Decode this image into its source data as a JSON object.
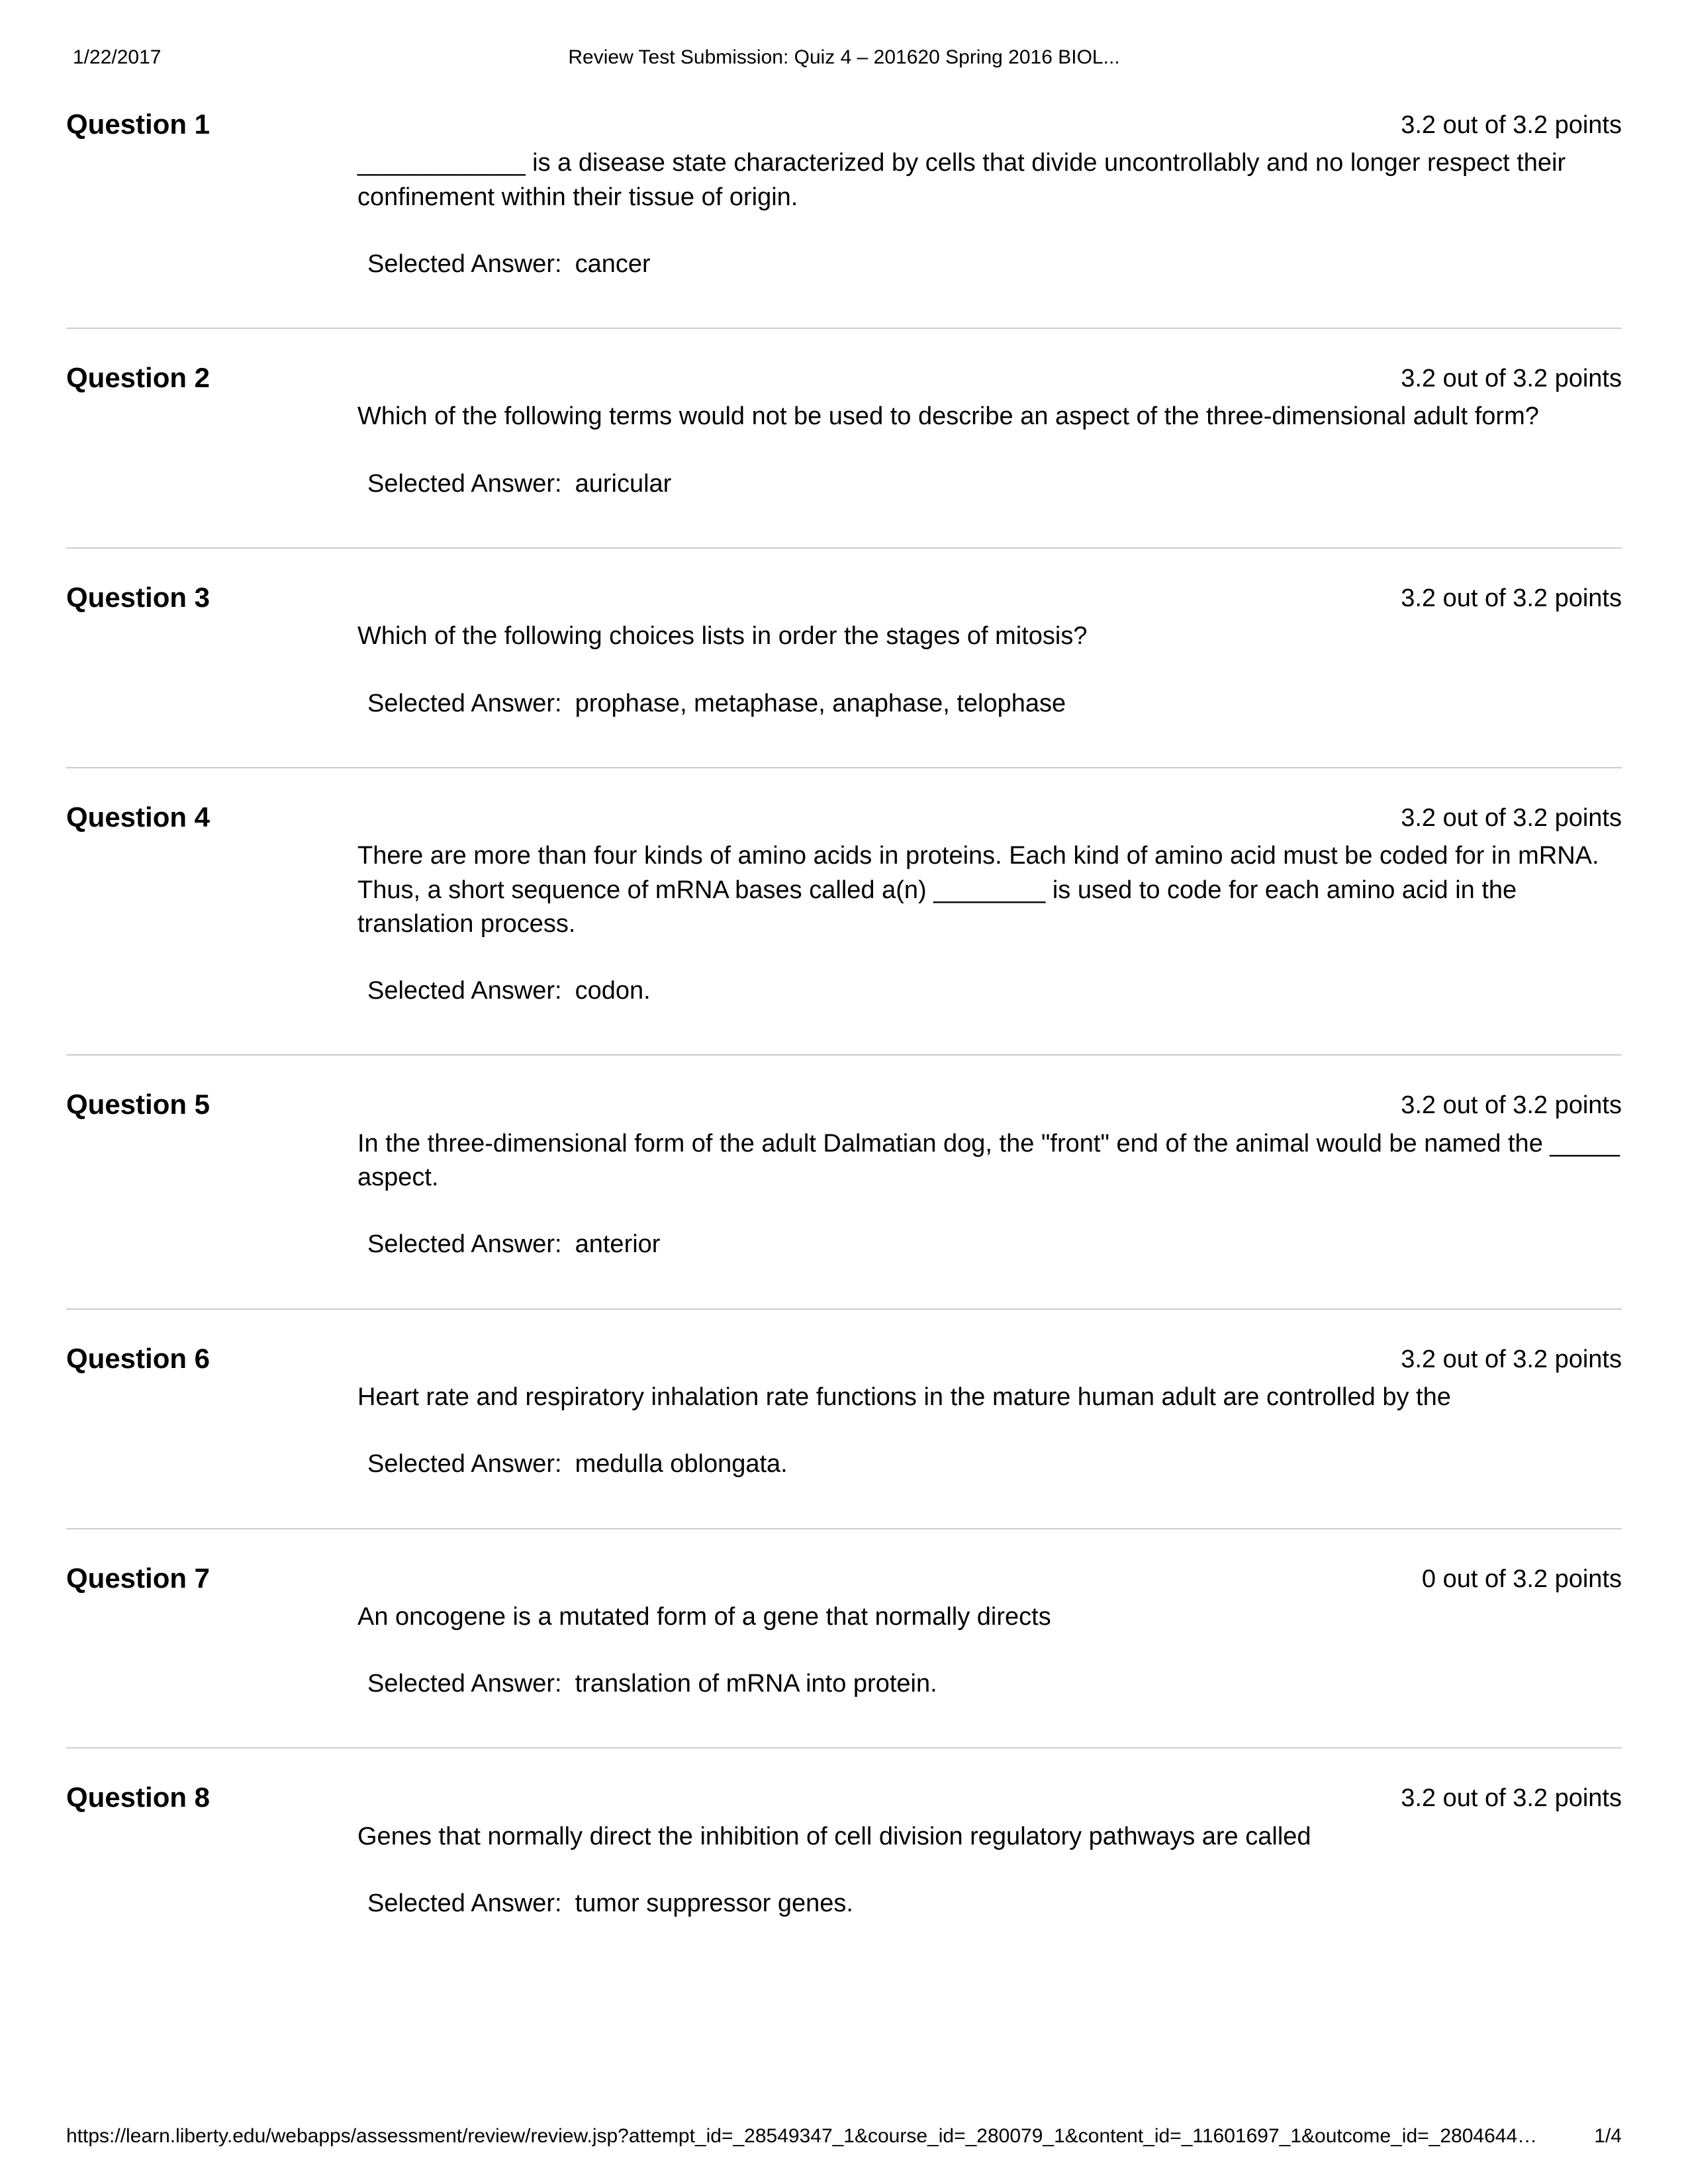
{
  "header": {
    "date": "1/22/2017",
    "title": "Review Test Submission: Quiz 4 – 201620 Spring 2016 BIOL..."
  },
  "questions": [
    {
      "label": "Question 1",
      "points": "3.2 out of 3.2 points",
      "text": "____________ is a disease state characterized by cells that divide uncontrollably and no longer respect their confinement within their tissue of origin.",
      "answer_label": "Selected Answer:",
      "answer_value": "cancer"
    },
    {
      "label": "Question 2",
      "points": "3.2 out of 3.2 points",
      "text": "Which of the following terms would not be used to describe an aspect of the three-dimensional adult form?",
      "answer_label": "Selected Answer:",
      "answer_value": "auricular"
    },
    {
      "label": "Question 3",
      "points": "3.2 out of 3.2 points",
      "text": "Which of the following choices lists in order the stages of mitosis?",
      "answer_label": "Selected Answer:",
      "answer_value": "prophase, metaphase, anaphase, telophase"
    },
    {
      "label": "Question 4",
      "points": "3.2 out of 3.2 points",
      "text": "There are more than four kinds of amino acids in proteins. Each kind of amino acid must be coded for in mRNA. Thus, a short sequence of mRNA bases called a(n) ________ is used to code for each amino acid in the translation process.",
      "answer_label": "Selected Answer:",
      "answer_value": "codon."
    },
    {
      "label": "Question 5",
      "points": "3.2 out of 3.2 points",
      "text": "In the three-dimensional form of the adult Dalmatian dog, the \"front\" end of the animal would be named the _____ aspect.",
      "answer_label": "Selected Answer:",
      "answer_value": "anterior"
    },
    {
      "label": "Question 6",
      "points": "3.2 out of 3.2 points",
      "text": "Heart rate and respiratory inhalation rate functions in the mature human adult are controlled by the",
      "answer_label": "Selected Answer:",
      "answer_value": "medulla oblongata."
    },
    {
      "label": "Question 7",
      "points": "0 out of 3.2 points",
      "text": "An oncogene is a mutated form of a gene that normally directs",
      "answer_label": "Selected Answer:",
      "answer_value": "translation of mRNA into protein."
    },
    {
      "label": "Question 8",
      "points": "3.2 out of 3.2 points",
      "text": "Genes that normally direct the inhibition of cell division regulatory pathways are called",
      "answer_label": "Selected Answer:",
      "answer_value": "tumor suppressor genes."
    }
  ],
  "footer": {
    "url": "https://learn.liberty.edu/webapps/assessment/review/review.jsp?attempt_id=_28549347_1&course_id=_280079_1&content_id=_11601697_1&outcome_id=_2804644…",
    "page": "1/4"
  }
}
